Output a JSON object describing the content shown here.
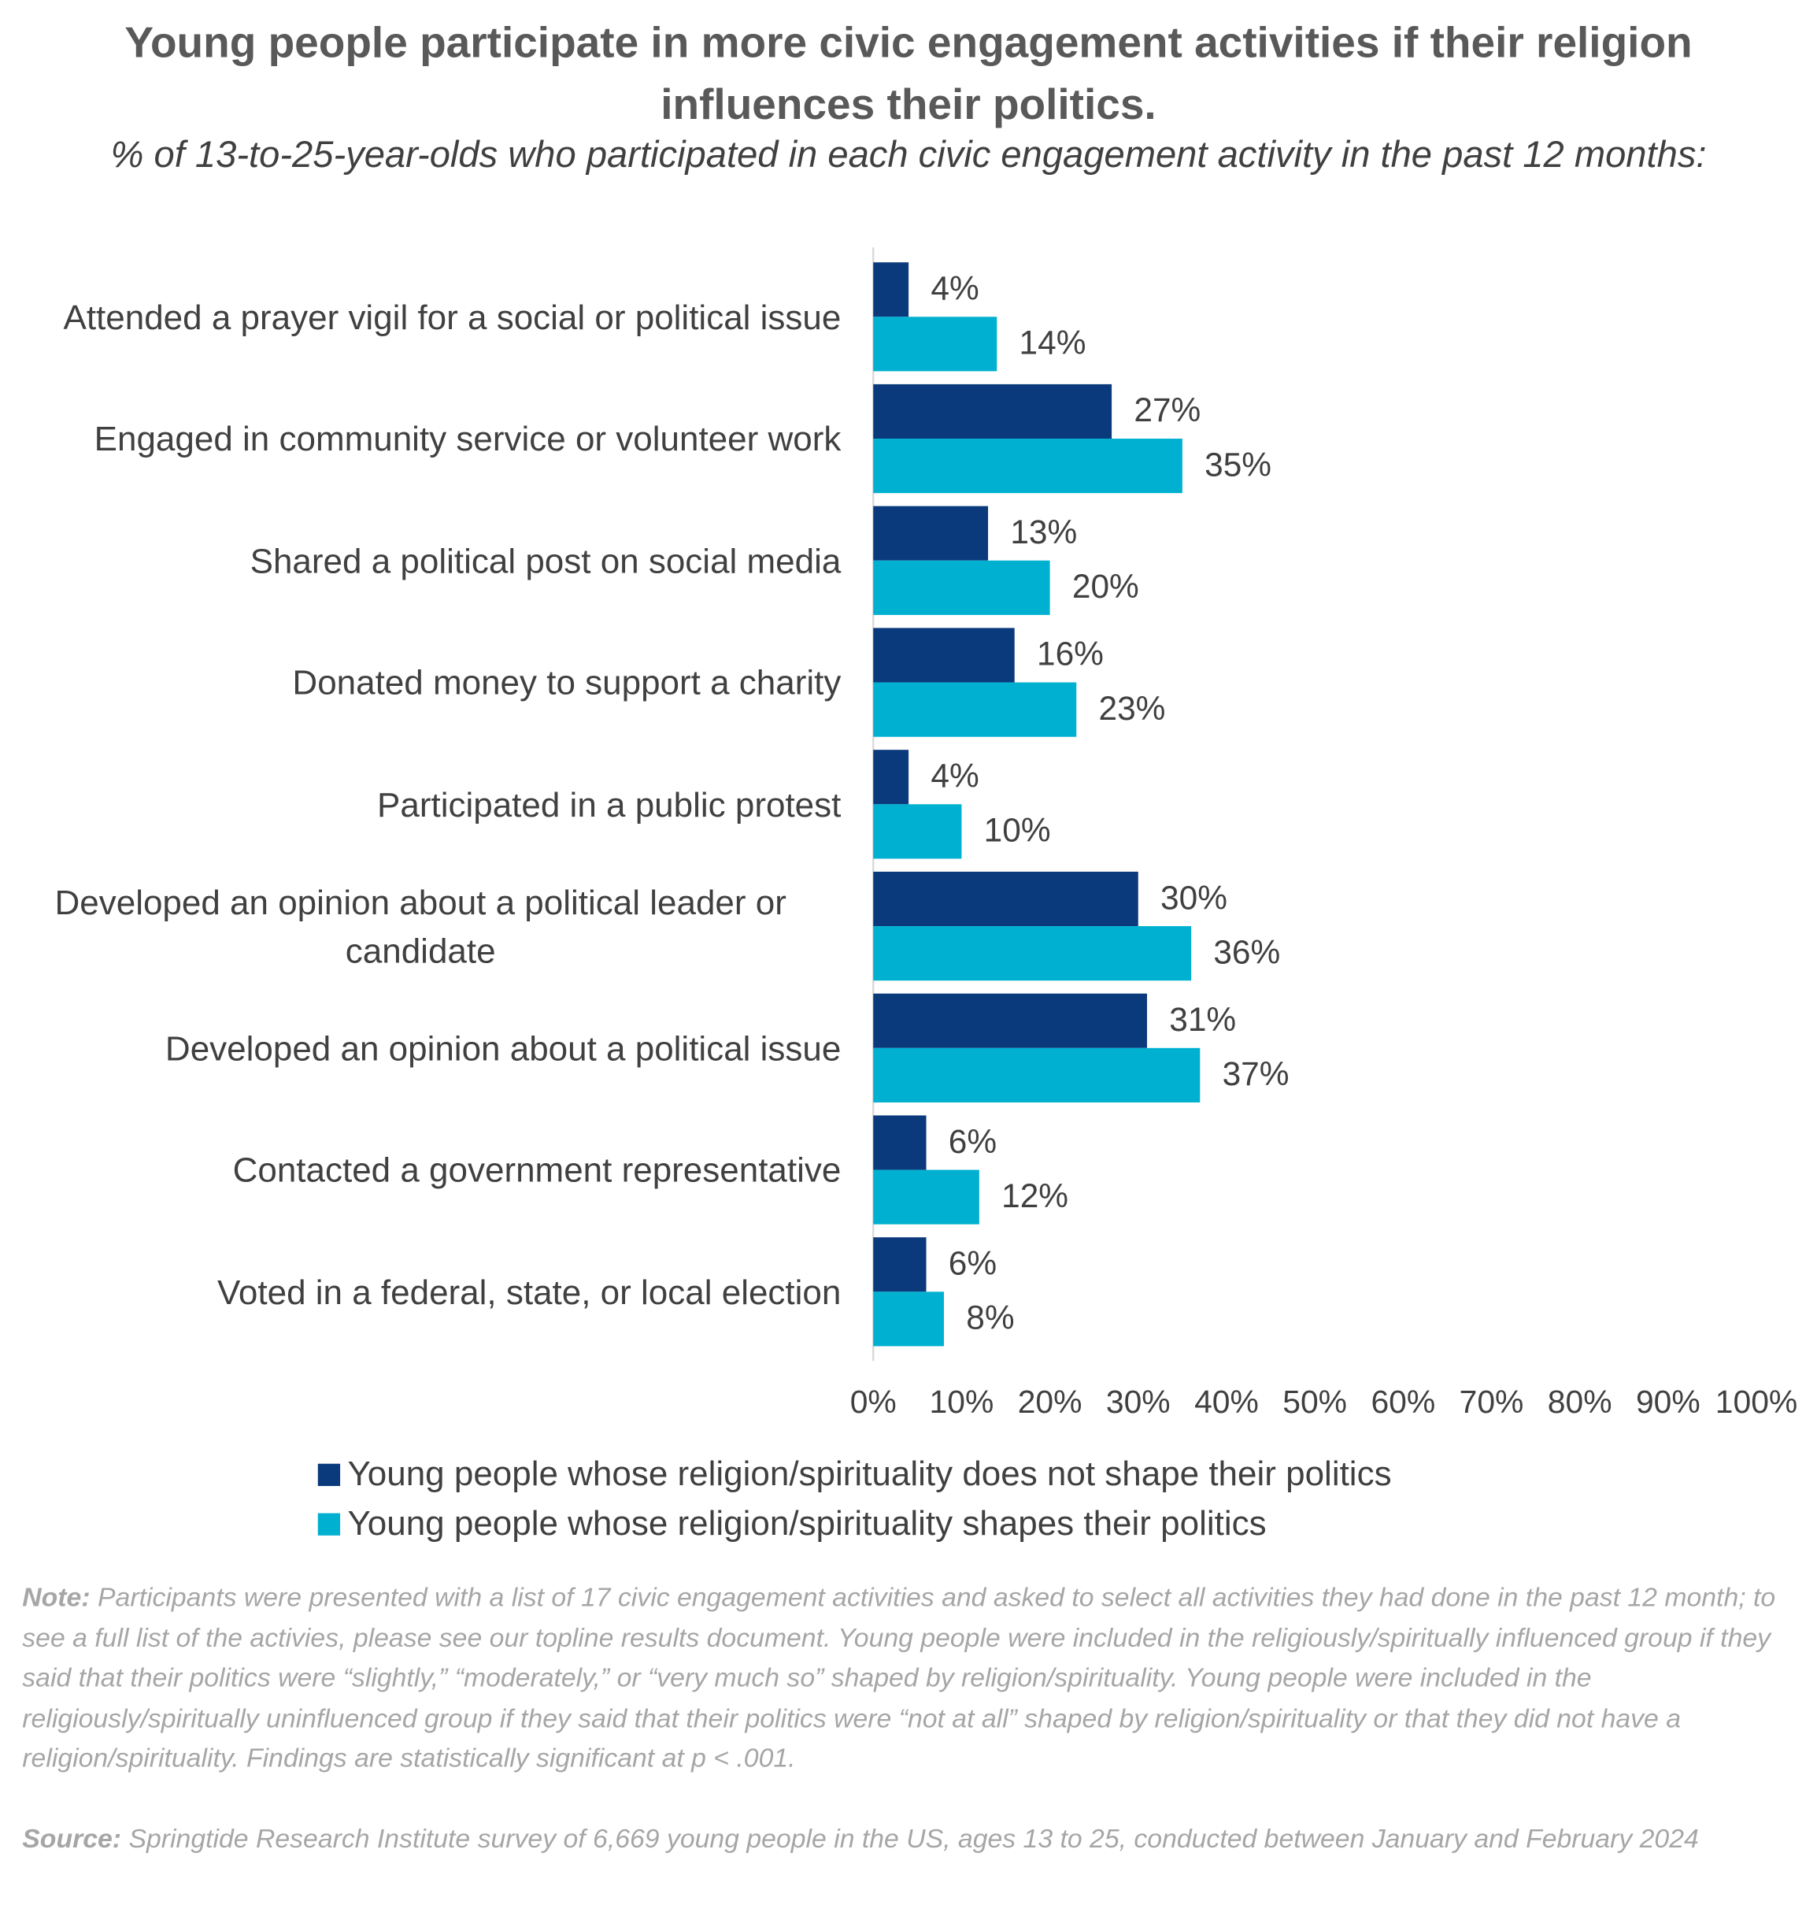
{
  "chart_data": {
    "type": "hbar",
    "title": "Young people participate in more civic engagement activities if their religion influences their politics.",
    "subtitle": "% of 13-to-25-year-olds who participated in each civic engagement activity in the past 12 months:",
    "categories": [
      "Attended a prayer vigil for a social or political issue",
      "Engaged in community service or volunteer work",
      "Shared a political post on social media",
      "Donated money to support a charity",
      "Participated in a public protest",
      "Developed an opinion about a political leader or candidate",
      "Developed an opinion about a political issue",
      "Contacted a government representative",
      "Voted in a federal, state, or local election"
    ],
    "series": [
      {
        "name": "Young people whose religion/spirituality does not shape their politics",
        "color": "#0b3a7c",
        "values": [
          4,
          27,
          13,
          16,
          4,
          30,
          31,
          6,
          6
        ],
        "value_labels": [
          "4%",
          "27%",
          "13%",
          "16%",
          "4%",
          "30%",
          "31%",
          "6%",
          "6%"
        ]
      },
      {
        "name": "Young people whose religion/spirituality shapes their politics",
        "color": "#00b0d0",
        "values": [
          14,
          35,
          20,
          23,
          10,
          36,
          37,
          12,
          8
        ],
        "value_labels": [
          "14%",
          "35%",
          "20%",
          "23%",
          "10%",
          "36%",
          "37%",
          "12%",
          "8%"
        ]
      }
    ],
    "xlim": [
      0,
      100
    ],
    "xticks": [
      {
        "value": 0,
        "label": "0%"
      },
      {
        "value": 10,
        "label": "10%"
      },
      {
        "value": 20,
        "label": "20%"
      },
      {
        "value": 30,
        "label": "30%"
      },
      {
        "value": 40,
        "label": "40%"
      },
      {
        "value": 50,
        "label": "50%"
      },
      {
        "value": 60,
        "label": "60%"
      },
      {
        "value": 70,
        "label": "70%"
      },
      {
        "value": 80,
        "label": "80%"
      },
      {
        "value": 90,
        "label": "90%"
      },
      {
        "value": 100,
        "label": "100%"
      }
    ],
    "grid": false
  },
  "note_label": "Note:",
  "note": "Participants were presented with a list of 17 civic engagement activities and asked to select all activities they had done in the past 12 month; to see a full list of the activies, please see our topline results document. Young people were included in the religiously/spiritually influenced group if they said that their politics were “slightly,” “moderately,” or “very much so” shaped by religion/spirituality. Young people were included in the religiously/spiritually uninfluenced group if they said that their politics were “not at all” shaped by religion/spirituality or that they did not have a religion/spirituality. Findings are statistically significant at p  < .001.",
  "source_label": "Source:",
  "source": "Springtide Research Institute survey of 6,669 young people in the US, ages 13 to 25, conducted between January and February 2024"
}
